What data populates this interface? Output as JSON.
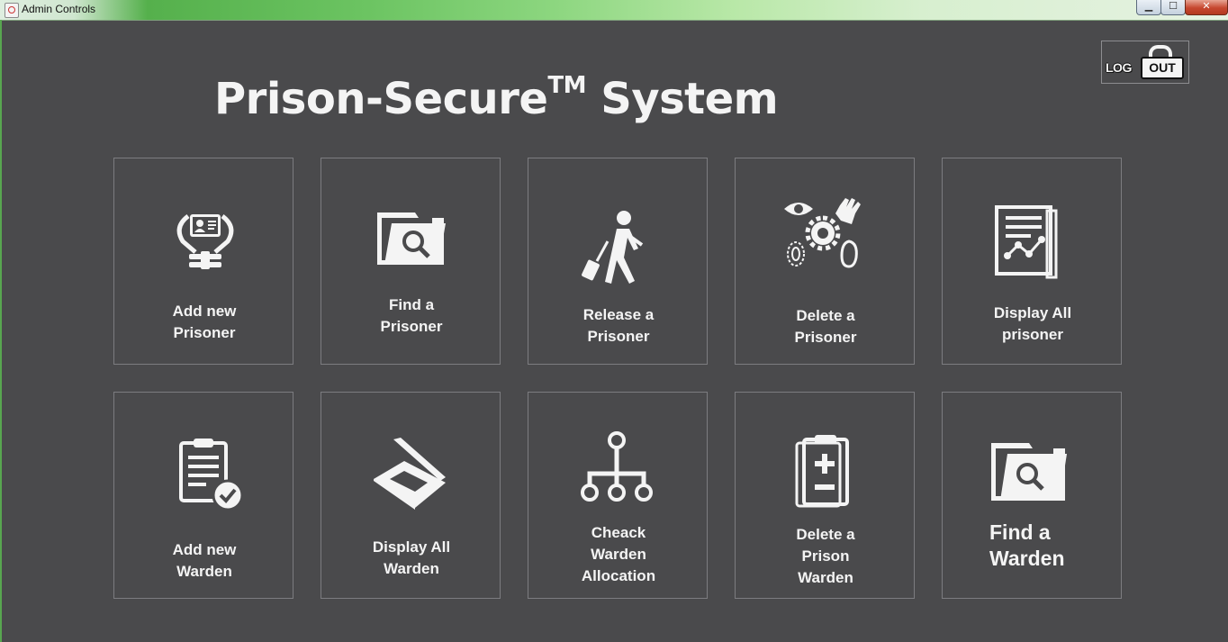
{
  "window": {
    "title": "Admin Controls",
    "minimize": "▁",
    "maximize": "☐",
    "close": "✕"
  },
  "logout": {
    "part1": "LOG",
    "part2": "OUT"
  },
  "header": {
    "title": "Prison-Secure",
    "tm": "TM",
    "title_suffix": "System"
  },
  "tiles": [
    {
      "line1": "Add new",
      "line2": "Prisoner",
      "icon": "id-card-hands-icon"
    },
    {
      "line1": "Find a",
      "line2": "Prisoner",
      "icon": "folder-search-icon"
    },
    {
      "line1": "Release a",
      "line2": "Prisoner",
      "icon": "walking-person-luggage-icon"
    },
    {
      "line1": "Delete a",
      "line2": "Prisoner",
      "icon": "biometrics-icon"
    },
    {
      "line1": "Display All",
      "line2": "prisoner",
      "icon": "report-chart-icon"
    },
    {
      "line1": "Add new",
      "line2": "Warden",
      "icon": "clipboard-check-icon"
    },
    {
      "line1": "Display All",
      "line2": "Warden",
      "icon": "scanner-icon"
    },
    {
      "line1": "Cheack",
      "line2": "Warden",
      "line3": "Allocation",
      "icon": "hierarchy-icon"
    },
    {
      "line1": "Delete a",
      "line2": "Prison",
      "line3": "Warden",
      "icon": "clipboard-plus-minus-icon"
    },
    {
      "line1": "Find a",
      "line2": "Warden",
      "icon": "folder-search-icon"
    }
  ]
}
